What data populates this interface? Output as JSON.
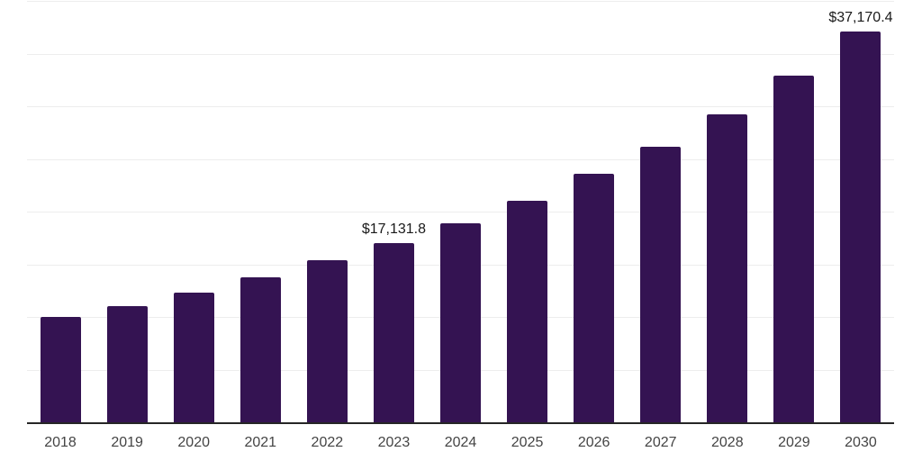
{
  "chart_data": {
    "type": "bar",
    "title": "",
    "xlabel": "",
    "ylabel": "",
    "categories": [
      "2018",
      "2019",
      "2020",
      "2021",
      "2022",
      "2023",
      "2024",
      "2025",
      "2026",
      "2027",
      "2028",
      "2029",
      "2030"
    ],
    "values": [
      10100,
      11080,
      12420,
      13870,
      15460,
      17131.8,
      18950,
      21100,
      23640,
      26280,
      29350,
      32970,
      37170.4
    ],
    "labeled_points": [
      {
        "category": "2023",
        "label": "$17,131.8"
      },
      {
        "category": "2030",
        "label": "$37,170.4"
      }
    ],
    "ylim": [
      0,
      40000
    ],
    "gridline_interval": 5000,
    "grid": "horizontal",
    "y_tick_labels_visible": false,
    "legend": "none",
    "colors": {
      "bar": "#341352",
      "background": "#ffffff",
      "gridline": "#ededed",
      "axis_line": "#262626",
      "tick_label": "#444444",
      "data_label": "#1a1a1a"
    }
  }
}
